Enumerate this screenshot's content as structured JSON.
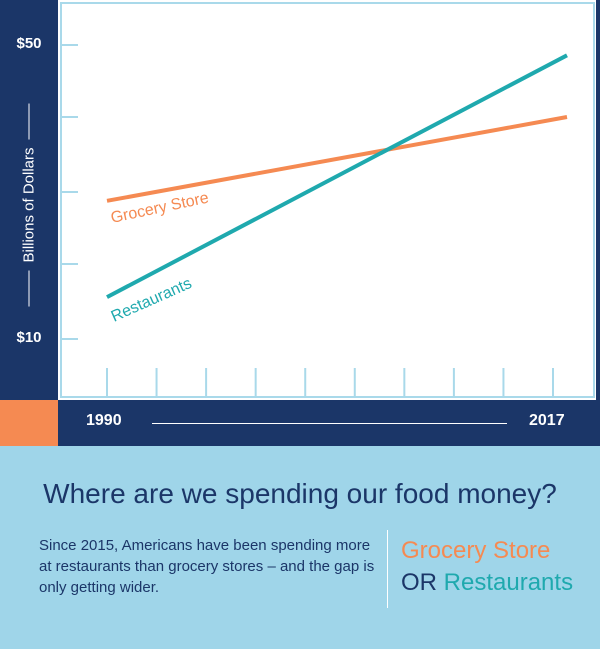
{
  "chart_data": {
    "type": "line",
    "x": [
      1990,
      2017
    ],
    "xlabel_ticks": [
      "1990",
      "2017"
    ],
    "y_ticks": [
      "$50",
      "$10"
    ],
    "ylabel": "Billions of Dollars",
    "ylim": [
      10,
      50
    ],
    "series": [
      {
        "name": "Grocery Store",
        "color": "#f58a52",
        "values": [
          28.8,
          40.2
        ]
      },
      {
        "name": "Restaurants",
        "color": "#1fa9ae",
        "values": [
          15.7,
          48.6
        ]
      }
    ],
    "grid": false
  },
  "headline": "Where are we spending our food money?",
  "body_text": "Since 2015, Americans have been spending more at restaurants than grocery stores – and the gap is only getting wider.",
  "cta": {
    "grocery": "Grocery Store",
    "or": "OR",
    "restaurants": "Restaurants"
  },
  "colors": {
    "navy": "#1b3668",
    "orange": "#f58a52",
    "teal": "#1fa9ae",
    "light_blue": "#9fd5e9",
    "grid_light": "#a9d9ea"
  }
}
